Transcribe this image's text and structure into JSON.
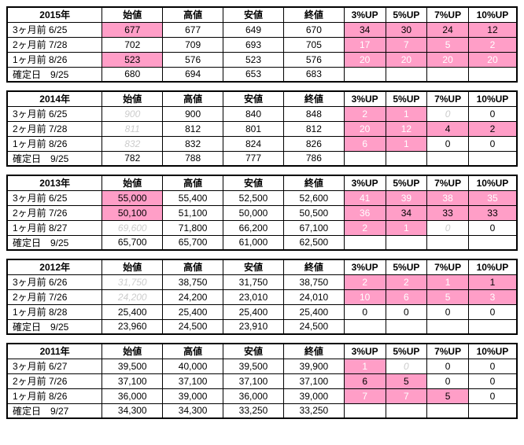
{
  "groups": [
    {
      "year": "2015年",
      "rows": [
        {
          "label": "3ヶ月前 6/25",
          "o": {
            "v": "677",
            "pink": true
          },
          "h": "677",
          "l": "649",
          "c": "670",
          "u": [
            {
              "v": "34",
              "pink": true
            },
            {
              "v": "30",
              "pink": true
            },
            {
              "v": "24",
              "pink": true
            },
            {
              "v": "12",
              "pink": true
            }
          ]
        },
        {
          "label": "2ヶ月前 7/28",
          "o": {
            "v": "702"
          },
          "h": "709",
          "l": "693",
          "c": "705",
          "u": [
            {
              "v": "17",
              "pink": true,
              "tx": true
            },
            {
              "v": "7",
              "pink": true,
              "tx": true
            },
            {
              "v": "5",
              "pink": true,
              "tx": true
            },
            {
              "v": "2",
              "pink": true,
              "tx": true
            }
          ]
        },
        {
          "label": "1ヶ月前 8/26",
          "o": {
            "v": "523",
            "pink": true
          },
          "h": "576",
          "l": "523",
          "c": "576",
          "u": [
            {
              "v": "20",
              "pink": true,
              "tx": true
            },
            {
              "v": "20",
              "pink": true,
              "tx": true
            },
            {
              "v": "20",
              "pink": true,
              "tx": true
            },
            {
              "v": "20",
              "pink": true,
              "tx": true
            }
          ]
        },
        {
          "label": "確定日　9/25",
          "o": {
            "v": "680"
          },
          "h": "694",
          "l": "653",
          "c": "683",
          "u": null
        }
      ]
    },
    {
      "year": "2014年",
      "rows": [
        {
          "label": "3ヶ月前 6/25",
          "o": {
            "v": "900",
            "faded": true
          },
          "h": "900",
          "l": "840",
          "c": "848",
          "u": [
            {
              "v": "2",
              "pink": true,
              "tx": true
            },
            {
              "v": "1",
              "pink": true,
              "tx": true
            },
            {
              "v": "0",
              "faded": true
            },
            {
              "v": "0"
            }
          ]
        },
        {
          "label": "2ヶ月前 7/28",
          "o": {
            "v": "811",
            "faded": true
          },
          "h": "812",
          "l": "801",
          "c": "812",
          "u": [
            {
              "v": "20",
              "pink": true,
              "tx": true
            },
            {
              "v": "12",
              "pink": true,
              "tx": true
            },
            {
              "v": "4",
              "pink": true
            },
            {
              "v": "2",
              "pink": true
            }
          ]
        },
        {
          "label": "1ヶ月前 8/26",
          "o": {
            "v": "832",
            "faded": true
          },
          "h": "832",
          "l": "824",
          "c": "826",
          "u": [
            {
              "v": "6",
              "pink": true,
              "tx": true
            },
            {
              "v": "1",
              "pink": true,
              "tx": true
            },
            {
              "v": "0"
            },
            {
              "v": "0"
            }
          ]
        },
        {
          "label": "確定日　9/25",
          "o": {
            "v": "782"
          },
          "h": "788",
          "l": "777",
          "c": "786",
          "u": null
        }
      ]
    },
    {
      "year": "2013年",
      "rows": [
        {
          "label": "3ヶ月前 6/25",
          "o": {
            "v": "55,000",
            "pink": true
          },
          "h": "55,400",
          "l": "52,500",
          "c": "52,600",
          "u": [
            {
              "v": "41",
              "pink": true,
              "tx": true
            },
            {
              "v": "39",
              "pink": true,
              "tx": true
            },
            {
              "v": "38",
              "pink": true,
              "tx": true
            },
            {
              "v": "35",
              "pink": true,
              "tx": true
            }
          ]
        },
        {
          "label": "2ヶ月前 7/26",
          "o": {
            "v": "50,100",
            "pink": true
          },
          "h": "51,100",
          "l": "50,000",
          "c": "50,500",
          "u": [
            {
              "v": "36",
              "pink": true,
              "tx": true
            },
            {
              "v": "34",
              "pink": true
            },
            {
              "v": "33",
              "pink": true
            },
            {
              "v": "33",
              "pink": true
            }
          ]
        },
        {
          "label": "1ヶ月前 8/27",
          "o": {
            "v": "69,600",
            "faded": true
          },
          "h": "71,800",
          "l": "66,200",
          "c": "67,100",
          "u": [
            {
              "v": "2",
              "pink": true,
              "tx": true
            },
            {
              "v": "1",
              "pink": true,
              "tx": true
            },
            {
              "v": "0",
              "faded": true
            },
            {
              "v": "0"
            }
          ]
        },
        {
          "label": "確定日　9/25",
          "o": {
            "v": "65,700"
          },
          "h": "65,700",
          "l": "61,000",
          "c": "62,500",
          "u": null
        }
      ]
    },
    {
      "year": "2012年",
      "rows": [
        {
          "label": "3ヶ月前 6/26",
          "o": {
            "v": "31,750",
            "faded": true
          },
          "h": "38,750",
          "l": "31,750",
          "c": "38,750",
          "u": [
            {
              "v": "2",
              "pink": true,
              "tx": true
            },
            {
              "v": "2",
              "pink": true,
              "tx": true
            },
            {
              "v": "1",
              "pink": true,
              "tx": true
            },
            {
              "v": "1",
              "pink": true
            }
          ]
        },
        {
          "label": "2ヶ月前 7/26",
          "o": {
            "v": "24,200",
            "faded": true
          },
          "h": "24,200",
          "l": "23,010",
          "c": "24,010",
          "u": [
            {
              "v": "10",
              "pink": true,
              "tx": true
            },
            {
              "v": "6",
              "pink": true,
              "tx": true
            },
            {
              "v": "5",
              "pink": true,
              "tx": true
            },
            {
              "v": "3",
              "pink": true,
              "tx": true
            }
          ]
        },
        {
          "label": "1ヶ月前 8/28",
          "o": {
            "v": "25,400"
          },
          "h": "25,400",
          "l": "25,400",
          "c": "25,400",
          "u": [
            {
              "v": "0"
            },
            {
              "v": "0"
            },
            {
              "v": "0"
            },
            {
              "v": "0"
            }
          ]
        },
        {
          "label": "確定日　9/25",
          "o": {
            "v": "23,960"
          },
          "h": "24,500",
          "l": "23,910",
          "c": "24,500",
          "u": null
        }
      ]
    },
    {
      "year": "2011年",
      "rows": [
        {
          "label": "3ヶ月前 6/27",
          "o": {
            "v": "39,500"
          },
          "h": "40,000",
          "l": "39,500",
          "c": "39,900",
          "u": [
            {
              "v": "1",
              "pink": true,
              "tx": true
            },
            {
              "v": "0",
              "faded": true
            },
            {
              "v": "0"
            },
            {
              "v": "0"
            }
          ]
        },
        {
          "label": "2ヶ月前 7/26",
          "o": {
            "v": "37,100"
          },
          "h": "37,100",
          "l": "37,100",
          "c": "37,100",
          "u": [
            {
              "v": "6",
              "pink": true
            },
            {
              "v": "5",
              "pink": true
            },
            {
              "v": "0"
            },
            {
              "v": "0"
            }
          ]
        },
        {
          "label": "1ヶ月前 8/26",
          "o": {
            "v": "36,000"
          },
          "h": "39,000",
          "l": "36,000",
          "c": "39,000",
          "u": [
            {
              "v": "7",
              "pink": true,
              "tx": true
            },
            {
              "v": "7",
              "pink": true,
              "tx": true
            },
            {
              "v": "5",
              "pink": true
            },
            {
              "v": "0"
            }
          ]
        },
        {
          "label": "確定日　9/27",
          "o": {
            "v": "34,300"
          },
          "h": "34,300",
          "l": "33,250",
          "c": "33,250",
          "u": null
        }
      ]
    }
  ],
  "headers": {
    "o": "始値",
    "h": "高値",
    "l": "安値",
    "c": "終値",
    "u3": "3%UP",
    "u5": "5%UP",
    "u7": "7%UP",
    "u10": "10%UP"
  }
}
